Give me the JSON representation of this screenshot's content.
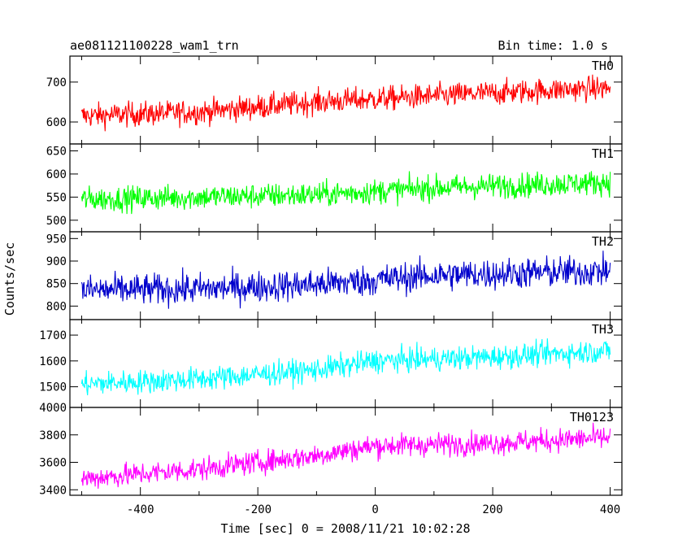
{
  "chart_data": {
    "type": "line",
    "title": "ae081121100228_wam1_trn",
    "subtitle": "Bin time: 1.0 s",
    "xlabel": "Time [sec] 0 = 2008/11/21 10:02:28",
    "ylabel": "Counts/sec",
    "xlim": [
      -520,
      420
    ],
    "x_ticks": [
      "-400",
      "-200",
      "0",
      "200",
      "400"
    ],
    "x_tick_values": [
      -400,
      -200,
      0,
      200,
      400
    ],
    "x_range": [
      -500,
      400
    ],
    "panels": [
      {
        "series_name": "TH0",
        "color": "#ff0000",
        "ylim": [
          545,
          765
        ],
        "y_ticks": [
          "600",
          "700"
        ],
        "y_tick_values": [
          600,
          700
        ],
        "trend": [
          [
            -500,
            615
          ],
          [
            -300,
            625
          ],
          [
            -100,
            650
          ],
          [
            100,
            665
          ],
          [
            300,
            680
          ],
          [
            400,
            685
          ]
        ],
        "noise": 40
      },
      {
        "series_name": "TH1",
        "color": "#00ff00",
        "ylim": [
          475,
          665
        ],
        "y_ticks": [
          "500",
          "550",
          "600",
          "650"
        ],
        "y_tick_values": [
          500,
          550,
          600,
          650
        ],
        "trend": [
          [
            -500,
            545
          ],
          [
            -300,
            550
          ],
          [
            -100,
            555
          ],
          [
            100,
            570
          ],
          [
            300,
            578
          ],
          [
            400,
            582
          ]
        ],
        "noise": 35
      },
      {
        "series_name": "TH2",
        "color": "#0000cc",
        "ylim": [
          770,
          965
        ],
        "y_ticks": [
          "800",
          "850",
          "900",
          "950"
        ],
        "y_tick_values": [
          800,
          850,
          900,
          950
        ],
        "trend": [
          [
            -500,
            835
          ],
          [
            -300,
            838
          ],
          [
            -100,
            848
          ],
          [
            100,
            868
          ],
          [
            300,
            875
          ],
          [
            400,
            878
          ]
        ],
        "noise": 45
      },
      {
        "series_name": "TH3",
        "color": "#00ffff",
        "ylim": [
          1420,
          1760
        ],
        "y_ticks": [
          "1500",
          "1600",
          "1700"
        ],
        "y_tick_values": [
          1500,
          1600,
          1700
        ],
        "trend": [
          [
            -500,
            1510
          ],
          [
            -300,
            1530
          ],
          [
            -100,
            1565
          ],
          [
            0,
            1600
          ],
          [
            200,
            1615
          ],
          [
            400,
            1640
          ]
        ],
        "noise": 60
      },
      {
        "series_name": "TH0123",
        "color": "#ff00ff",
        "ylim": [
          3360,
          4000
        ],
        "y_ticks": [
          "3400",
          "3600",
          "3800",
          "4000"
        ],
        "y_tick_values": [
          3400,
          3600,
          3800,
          4000
        ],
        "trend": [
          [
            -500,
            3480
          ],
          [
            -300,
            3550
          ],
          [
            -100,
            3650
          ],
          [
            0,
            3720
          ],
          [
            200,
            3740
          ],
          [
            400,
            3780
          ]
        ],
        "noise": 110
      }
    ]
  }
}
